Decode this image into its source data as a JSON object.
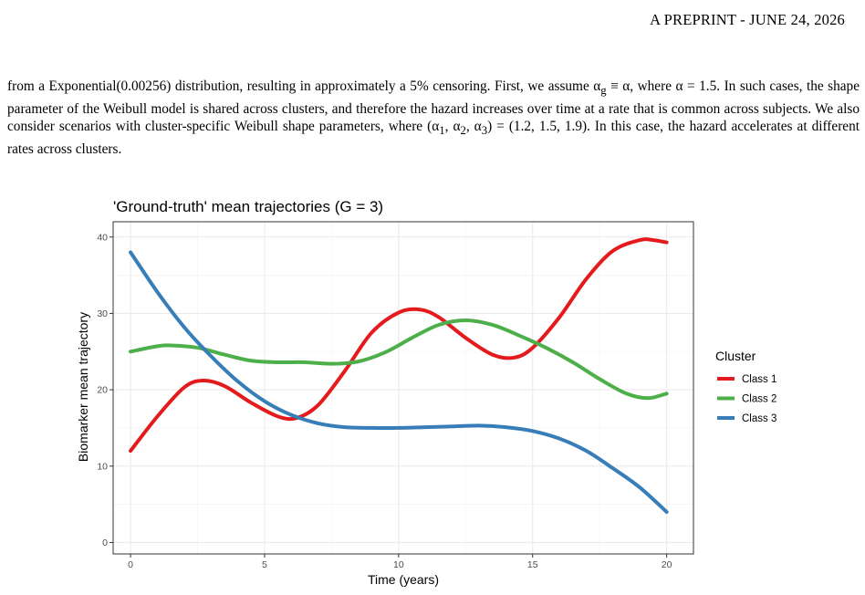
{
  "header": {
    "text": "A PREPRINT - JUNE 24, 2026"
  },
  "paragraph": {
    "p1": "from a Exponential(0.00256) distribution, resulting in approximately a 5% censoring. First, we assume α",
    "sub_g": "g",
    "p2": " ≡ α, where α = 1.5. In such cases, the shape parameter of the Weibull model is shared across clusters, and therefore the hazard increases over time at a rate that is common across subjects. We also consider scenarios with cluster-specific Weibull shape parameters, where (α",
    "sub_1": "1",
    "p3": ", α",
    "sub_2": "2",
    "p4": ", α",
    "sub_3": "3",
    "p5": ") = (1.2, 1.5, 1.9). In this case, the hazard accelerates at different rates across clusters."
  },
  "chart_data": {
    "type": "line",
    "title": "'Ground-truth' mean trajectories (G = 3)",
    "xlabel": "Time (years)",
    "ylabel": "Biomarker mean trajectory",
    "xlim": [
      -0.65,
      21.0
    ],
    "ylim": [
      -1.5,
      42.0
    ],
    "xticks": [
      0,
      5,
      10,
      15,
      20
    ],
    "yticks": [
      0,
      10,
      20,
      30,
      40
    ],
    "grid": true,
    "legend": {
      "title": "Cluster",
      "placement": "right"
    },
    "series": [
      {
        "name": "Class 1",
        "color": "#e41a1c",
        "x": [
          0,
          1,
          2,
          2.7,
          3.5,
          4.5,
          5.5,
          6.2,
          7,
          8,
          9,
          10,
          10.8,
          11.5,
          12.5,
          13.5,
          14.3,
          15,
          16,
          17,
          18,
          19,
          19.5,
          20
        ],
        "y": [
          12,
          16.5,
          20.3,
          21.2,
          20.5,
          18.3,
          16.5,
          16.3,
          18,
          22.5,
          27.5,
          30.1,
          30.5,
          29.5,
          26.8,
          24.6,
          24.2,
          25.5,
          29.5,
          34.5,
          38.2,
          39.6,
          39.6,
          39.3
        ]
      },
      {
        "name": "Class 2",
        "color": "#4daf4a",
        "x": [
          0,
          1,
          1.5,
          2.5,
          3.5,
          4.5,
          5.5,
          6.5,
          7.5,
          8.5,
          9.5,
          10.5,
          11.5,
          12.5,
          13.5,
          14.5,
          15.5,
          16.5,
          17.5,
          18.5,
          19.3,
          20
        ],
        "y": [
          25,
          25.7,
          25.8,
          25.5,
          24.6,
          23.8,
          23.6,
          23.6,
          23.4,
          23.7,
          24.9,
          26.8,
          28.5,
          29.1,
          28.5,
          27.1,
          25.5,
          23.6,
          21.4,
          19.5,
          18.9,
          19.5
        ]
      },
      {
        "name": "Class 3",
        "color": "#377eb8",
        "x": [
          0,
          1,
          2,
          3,
          4,
          5,
          6,
          7,
          8,
          9,
          10,
          11,
          12,
          13,
          14,
          15,
          16,
          17,
          18,
          19,
          20
        ],
        "y": [
          38,
          32.8,
          28.2,
          24.4,
          21.1,
          18.5,
          16.7,
          15.6,
          15.1,
          15,
          15,
          15.1,
          15.2,
          15.3,
          15.1,
          14.6,
          13.6,
          12,
          9.7,
          7.2,
          4
        ]
      }
    ]
  }
}
